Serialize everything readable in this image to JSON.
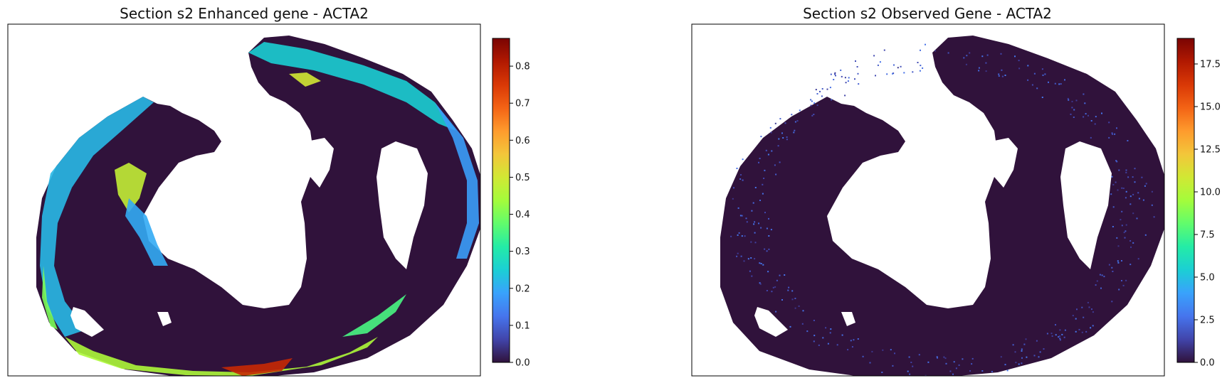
{
  "chart_data": [
    {
      "type": "heatmap",
      "title": "Section s2 Enhanced gene - ACTA2",
      "colormap": "turbo",
      "colorbar": {
        "min": 0.0,
        "max": 0.875,
        "ticks": [
          "0.0",
          "0.1",
          "0.2",
          "0.3",
          "0.4",
          "0.5",
          "0.6",
          "0.7",
          "0.8"
        ],
        "tick_values": [
          0,
          0.1,
          0.2,
          0.3,
          0.4,
          0.5,
          0.6,
          0.7,
          0.8
        ]
      },
      "axes_visible": false,
      "max_intensity": 0.75
    },
    {
      "type": "heatmap",
      "title": "Section s2 Observed Gene - ACTA2",
      "colormap": "turbo",
      "colorbar": {
        "min": 0.0,
        "max": 19.0,
        "ticks": [
          "0.0",
          "2.5",
          "5.0",
          "7.5",
          "10.0",
          "12.5",
          "15.0",
          "17.5"
        ],
        "tick_values": [
          0,
          2.5,
          5,
          7.5,
          10,
          12.5,
          15,
          17.5
        ]
      },
      "axes_visible": false,
      "max_intensity": 0.12
    }
  ],
  "colors": {
    "background_tissue": "#30123b",
    "turbo_stops": [
      "#30123b",
      "#4145ab",
      "#4675ed",
      "#39a2fc",
      "#1bcfd4",
      "#24eca6",
      "#61fc6c",
      "#a4fc3b",
      "#d1e834",
      "#f3c63a",
      "#fe9b2d",
      "#f36315",
      "#d93806",
      "#b11901",
      "#7a0403"
    ]
  }
}
